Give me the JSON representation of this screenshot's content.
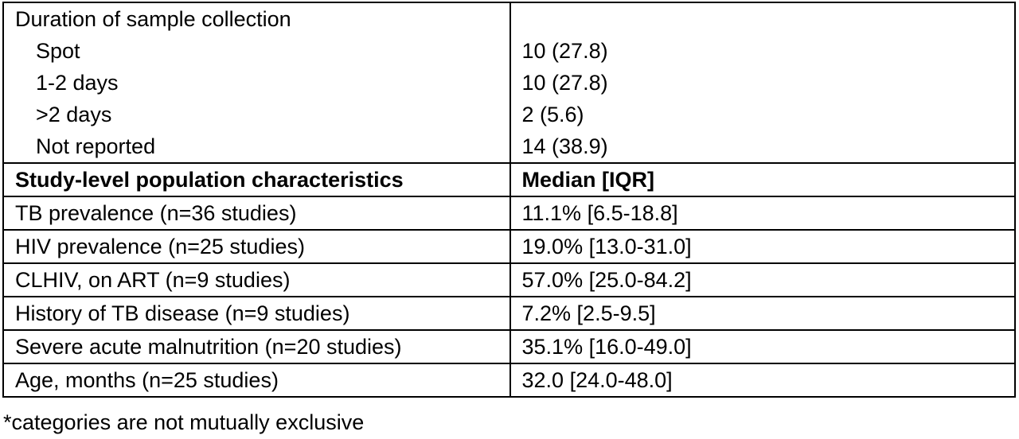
{
  "table": {
    "section1": {
      "heading": "Duration of sample collection",
      "rows": [
        {
          "label": "Spot",
          "value": "10 (27.8)"
        },
        {
          "label": "1-2 days",
          "value": "10 (27.8)"
        },
        {
          "label": ">2 days",
          "value": "2 (5.6)"
        },
        {
          "label": "Not reported",
          "value": "14 (38.9)"
        }
      ]
    },
    "section2": {
      "header_label": "Study-level population characteristics",
      "header_value": "Median [IQR]",
      "rows": [
        {
          "label": "TB prevalence (n=36 studies)",
          "value": "11.1% [6.5-18.8]"
        },
        {
          "label": "HIV prevalence (n=25 studies)",
          "value": "19.0% [13.0-31.0]"
        },
        {
          "label": "CLHIV, on ART (n=9 studies)",
          "value": "57.0% [25.0-84.2]"
        },
        {
          "label": "History of TB disease (n=9 studies)",
          "value": "7.2% [2.5-9.5]"
        },
        {
          "label": "Severe acute malnutrition (n=20 studies)",
          "value": "35.1% [16.0-49.0]"
        },
        {
          "label": "Age, months (n=25 studies)",
          "value": "32.0 [24.0-48.0]"
        }
      ]
    }
  },
  "footnote": "*categories are not mutually exclusive"
}
